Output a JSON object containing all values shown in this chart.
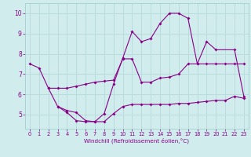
{
  "xlabel": "Windchill (Refroidissement éolien,°C)",
  "bg_color": "#d0ecec",
  "line_color": "#880088",
  "grid_color": "#b8dada",
  "xlim": [
    -0.5,
    23.5
  ],
  "ylim": [
    4.3,
    10.5
  ],
  "yticks": [
    5,
    6,
    7,
    8,
    9,
    10
  ],
  "xticks": [
    0,
    1,
    2,
    3,
    4,
    5,
    6,
    7,
    8,
    9,
    10,
    11,
    12,
    13,
    14,
    15,
    16,
    17,
    18,
    19,
    20,
    21,
    22,
    23
  ],
  "line1_x": [
    0,
    1,
    2,
    3,
    4,
    5,
    6,
    7,
    8,
    9,
    10,
    11,
    12,
    13,
    14,
    15,
    16,
    17,
    18,
    19,
    20,
    22,
    23
  ],
  "line1_y": [
    7.5,
    7.3,
    6.3,
    5.4,
    5.1,
    4.7,
    4.65,
    4.65,
    5.05,
    6.5,
    7.8,
    9.1,
    8.6,
    8.75,
    9.5,
    10.0,
    10.0,
    9.75,
    7.5,
    8.6,
    8.2,
    8.2,
    5.9
  ],
  "line2_x": [
    2,
    3,
    4,
    5,
    6,
    7,
    8,
    9,
    10,
    11,
    12,
    13,
    14,
    15,
    16,
    17,
    18,
    19,
    20,
    21,
    22,
    23
  ],
  "line2_y": [
    6.3,
    6.3,
    6.3,
    6.4,
    6.5,
    6.6,
    6.65,
    6.7,
    7.75,
    7.75,
    6.6,
    6.6,
    6.8,
    6.85,
    7.0,
    7.5,
    7.5,
    7.5,
    7.5,
    7.5,
    7.5,
    7.5
  ],
  "line3_x": [
    3,
    4,
    5,
    6,
    7,
    8,
    9,
    10,
    11,
    12,
    13,
    14,
    15,
    16,
    17,
    18,
    19,
    20,
    21,
    22,
    23
  ],
  "line3_y": [
    5.4,
    5.2,
    5.1,
    4.7,
    4.65,
    4.65,
    5.05,
    5.4,
    5.5,
    5.5,
    5.5,
    5.5,
    5.5,
    5.55,
    5.55,
    5.6,
    5.65,
    5.7,
    5.7,
    5.9,
    5.8
  ]
}
